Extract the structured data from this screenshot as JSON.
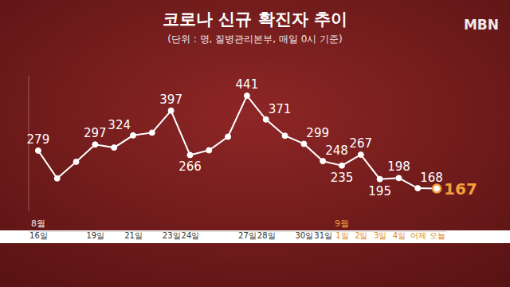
{
  "chart_data": {
    "type": "line",
    "title": "코로나 신규 확진자 추이",
    "subtitle": "(단위 : 명, 질병관리본부, 매일 0시 기준)",
    "annotations": [
      {
        "text": "MBN"
      },
      {
        "text": "8월",
        "category": 0
      },
      {
        "text": "9월",
        "category": 16
      }
    ],
    "categories": [
      "16일",
      null,
      null,
      "19일",
      null,
      "21일",
      null,
      "23일",
      "24일",
      null,
      null,
      "27일",
      "28일",
      null,
      "30일",
      "31일",
      "1일",
      "2일",
      "3일",
      "4일",
      "어제",
      "오늘"
    ],
    "values": [
      279,
      197,
      246,
      297,
      288,
      324,
      332,
      397,
      266,
      280,
      320,
      441,
      371,
      323,
      299,
      248,
      235,
      267,
      195,
      198,
      168,
      167
    ],
    "value_labels": [
      "279",
      null,
      null,
      "297",
      null,
      "324",
      null,
      "397",
      "266",
      null,
      null,
      "441",
      "371",
      null,
      "299",
      "248",
      "235",
      "267",
      "195",
      "198",
      "168",
      "167"
    ],
    "color": "#ffffff",
    "colors": [
      "#ffffff",
      "#ffffff",
      "#ffffff",
      "#ffffff",
      "#ffffff",
      "#ffffff",
      "#ffffff",
      "#ffffff",
      "#ffffff",
      "#ffffff",
      "#ffffff",
      "#ffffff",
      "#ffffff",
      "#ffffff",
      "#ffffff",
      "#ffffff",
      "#ffffff",
      "#ffffff",
      "#ffffff",
      "#ffffff",
      "#ffffff",
      "#f5a03c"
    ],
    "marker": "circle",
    "data_labels": true,
    "ylim": [
      100,
      500
    ],
    "grid": false,
    "tick_labels": "x"
  }
}
